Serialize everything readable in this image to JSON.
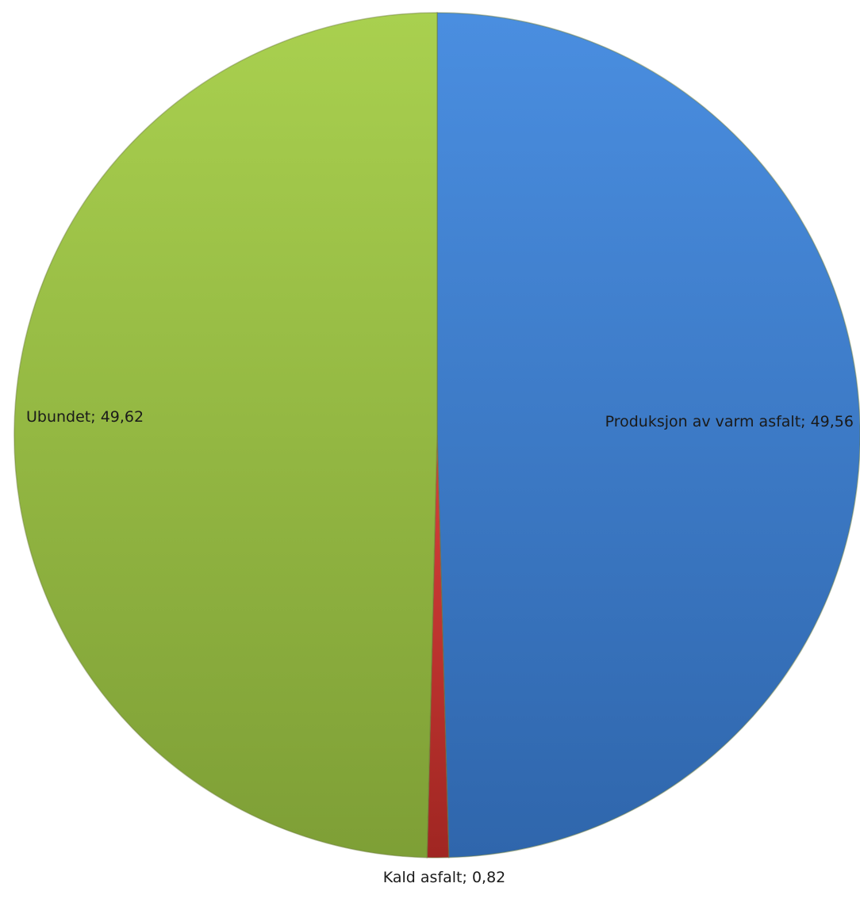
{
  "chart_data": {
    "type": "pie",
    "title": "",
    "slices": [
      {
        "label": "Produksjon av varm asfalt",
        "value": 49.56,
        "data_label": "Produksjon av varm asfalt; 49,56",
        "color": "#3f7fd0"
      },
      {
        "label": "Kald asfalt",
        "value": 0.82,
        "data_label": "Kald asfalt; 0,82",
        "color": "#c0302c"
      },
      {
        "label": "Ubundet",
        "value": 49.62,
        "data_label": "Ubundet; 49,62",
        "color": "#9bc046"
      }
    ],
    "start_angle_deg": 0,
    "direction": "clockwise",
    "legend": "none"
  }
}
